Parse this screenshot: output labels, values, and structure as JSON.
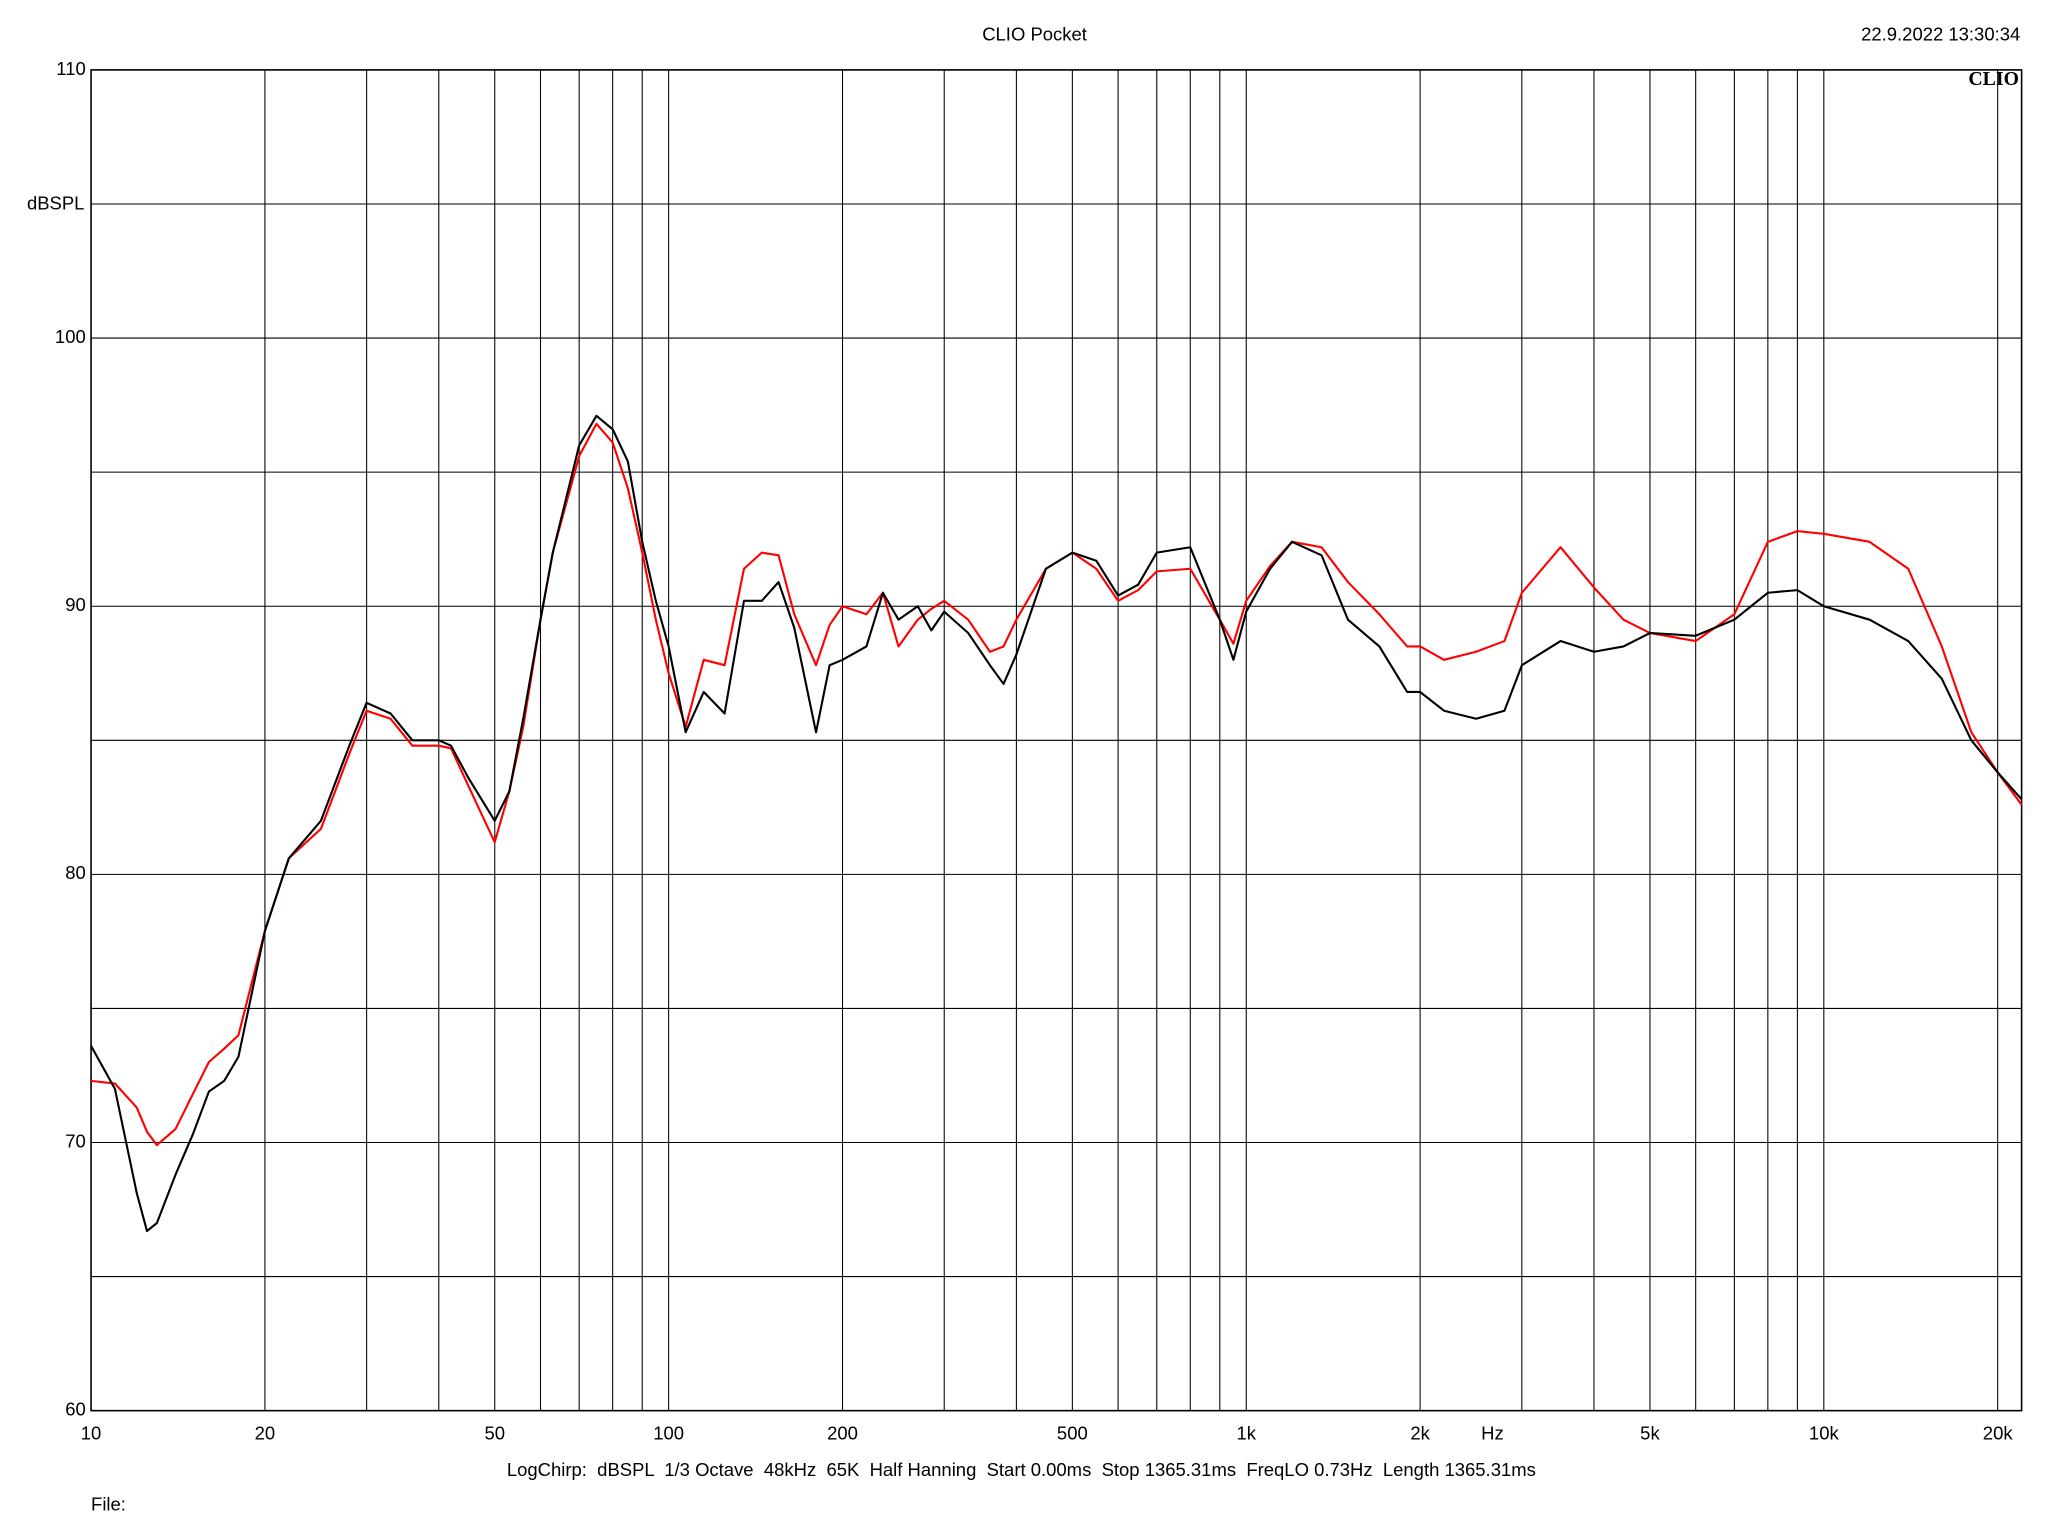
{
  "header": {
    "title": "CLIO Pocket",
    "timestamp": "22.9.2022 13:30:34",
    "logo": "CLIO"
  },
  "chart_data": {
    "type": "line",
    "log_x": true,
    "grid": true,
    "y_label": "dBSPL",
    "x_label": "Hz",
    "xlim": [
      10,
      22000
    ],
    "ylim": [
      60,
      110
    ],
    "xticks": [
      10,
      20,
      50,
      100,
      200,
      500,
      {
        "value": 1000,
        "label": "1k"
      },
      {
        "value": 2000,
        "label": "2k"
      },
      {
        "value": 5000,
        "label": "5k"
      },
      {
        "value": 10000,
        "label": "10k"
      },
      {
        "value": 20000,
        "label": "20k"
      }
    ],
    "x_minor_grid": [
      30,
      40,
      60,
      70,
      80,
      90,
      300,
      400,
      600,
      700,
      800,
      900,
      3000,
      4000,
      6000,
      7000,
      8000,
      9000
    ],
    "yticks": [
      60,
      70,
      80,
      90,
      100,
      110
    ],
    "y_minor_grid": [
      65,
      75,
      85,
      95,
      105
    ],
    "x": [
      10,
      11,
      12,
      12.5,
      13,
      14,
      15,
      16,
      17,
      18,
      20,
      22,
      25,
      28,
      30,
      33,
      36,
      40,
      42,
      45,
      50,
      53,
      56,
      60,
      63,
      70,
      75,
      80,
      85,
      90,
      95,
      100,
      107,
      115,
      125,
      135,
      145,
      155,
      165,
      180,
      190,
      200,
      220,
      235,
      250,
      270,
      285,
      300,
      330,
      360,
      380,
      400,
      450,
      500,
      550,
      600,
      650,
      700,
      800,
      900,
      950,
      1000,
      1100,
      1200,
      1350,
      1500,
      1700,
      1900,
      2000,
      2200,
      2500,
      2800,
      3000,
      3500,
      4000,
      4500,
      5000,
      6000,
      7000,
      8000,
      9000,
      10000,
      12000,
      14000,
      16000,
      18000,
      20000,
      22000
    ],
    "series": [
      {
        "color": "#ff0000",
        "values": [
          72.3,
          72.2,
          71.3,
          70.4,
          69.9,
          70.5,
          71.8,
          73.0,
          73.5,
          74.0,
          77.9,
          80.6,
          81.7,
          84.5,
          86.1,
          85.8,
          84.8,
          84.8,
          84.7,
          83.3,
          81.2,
          83.1,
          85.5,
          89.5,
          92.0,
          95.6,
          96.8,
          96.1,
          94.4,
          92.0,
          89.5,
          87.5,
          85.5,
          88.0,
          87.8,
          91.4,
          92.0,
          91.9,
          89.7,
          87.8,
          89.3,
          90.0,
          89.7,
          90.5,
          88.5,
          89.5,
          89.9,
          90.2,
          89.5,
          88.3,
          88.5,
          89.5,
          91.4,
          92.0,
          91.4,
          90.2,
          90.6,
          91.3,
          91.4,
          89.5,
          88.6,
          90.2,
          91.5,
          92.4,
          92.2,
          90.9,
          89.7,
          88.5,
          88.5,
          88.0,
          88.3,
          88.7,
          90.5,
          92.2,
          90.7,
          89.5,
          89.0,
          88.7,
          89.7,
          92.4,
          92.8,
          92.7,
          92.4,
          91.4,
          88.5,
          85.3,
          83.8,
          82.6
        ]
      },
      {
        "color": "#000000",
        "values": [
          73.6,
          72.0,
          68.1,
          66.7,
          67.0,
          68.8,
          70.3,
          71.9,
          72.3,
          73.2,
          77.9,
          80.6,
          82.0,
          84.8,
          86.4,
          86.0,
          85.0,
          85.0,
          84.8,
          83.6,
          82.0,
          83.1,
          85.8,
          89.5,
          92.0,
          96.0,
          97.1,
          96.6,
          95.4,
          92.4,
          90.2,
          88.5,
          85.3,
          86.8,
          86.0,
          90.2,
          90.2,
          90.9,
          89.2,
          85.3,
          87.8,
          88.0,
          88.5,
          90.5,
          89.5,
          90.0,
          89.1,
          89.8,
          89.0,
          87.8,
          87.1,
          88.2,
          91.4,
          92.0,
          91.7,
          90.4,
          90.8,
          92.0,
          92.2,
          89.5,
          88.0,
          89.8,
          91.4,
          92.4,
          91.9,
          89.5,
          88.5,
          86.8,
          86.8,
          86.1,
          85.8,
          86.1,
          87.8,
          88.7,
          88.3,
          88.5,
          89.0,
          88.9,
          89.5,
          90.5,
          90.6,
          90.0,
          89.5,
          88.7,
          87.3,
          85.0,
          83.8,
          82.8
        ]
      }
    ]
  },
  "footer": {
    "settings": "LogChirp:  dBSPL  1/3 Octave  48kHz  65K  Half Hanning  Start 0.00ms  Stop 1365.31ms  FreqLO 0.73Hz  Length 1365.31ms",
    "file": "File:"
  }
}
